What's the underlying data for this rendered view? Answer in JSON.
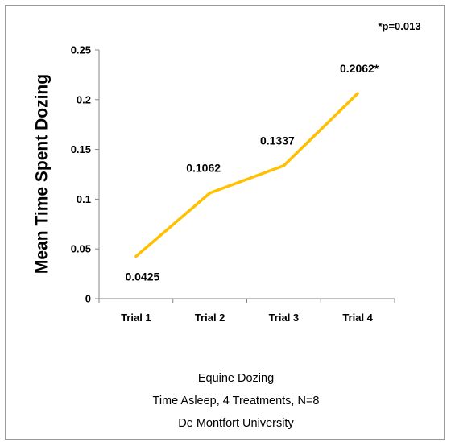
{
  "chart_data": {
    "type": "line",
    "categories": [
      "Trial 1",
      "Trial 2",
      "Trial 3",
      "Trial 4"
    ],
    "series": [
      {
        "values": [
          0.0425,
          0.1062,
          0.1337,
          0.2062
        ],
        "color": "#ffc000"
      }
    ],
    "data_labels": [
      "0.0425",
      "0.1062",
      "0.1337",
      "0.2062*"
    ],
    "ylabel": "Mean Time Spent Dozing",
    "ylim": [
      0,
      0.25
    ],
    "yticks": [
      0,
      0.05,
      0.1,
      0.15,
      0.2,
      0.25
    ],
    "ytick_labels": [
      "0",
      "0.05",
      "0.1",
      "0.15",
      "0.2",
      "0.25"
    ],
    "annotation": "*p=0.013",
    "caption_lines": [
      "Equine Dozing",
      "Time Asleep, 4 Treatments, N=8",
      "De Montfort University"
    ],
    "grid": false,
    "legend": false
  }
}
